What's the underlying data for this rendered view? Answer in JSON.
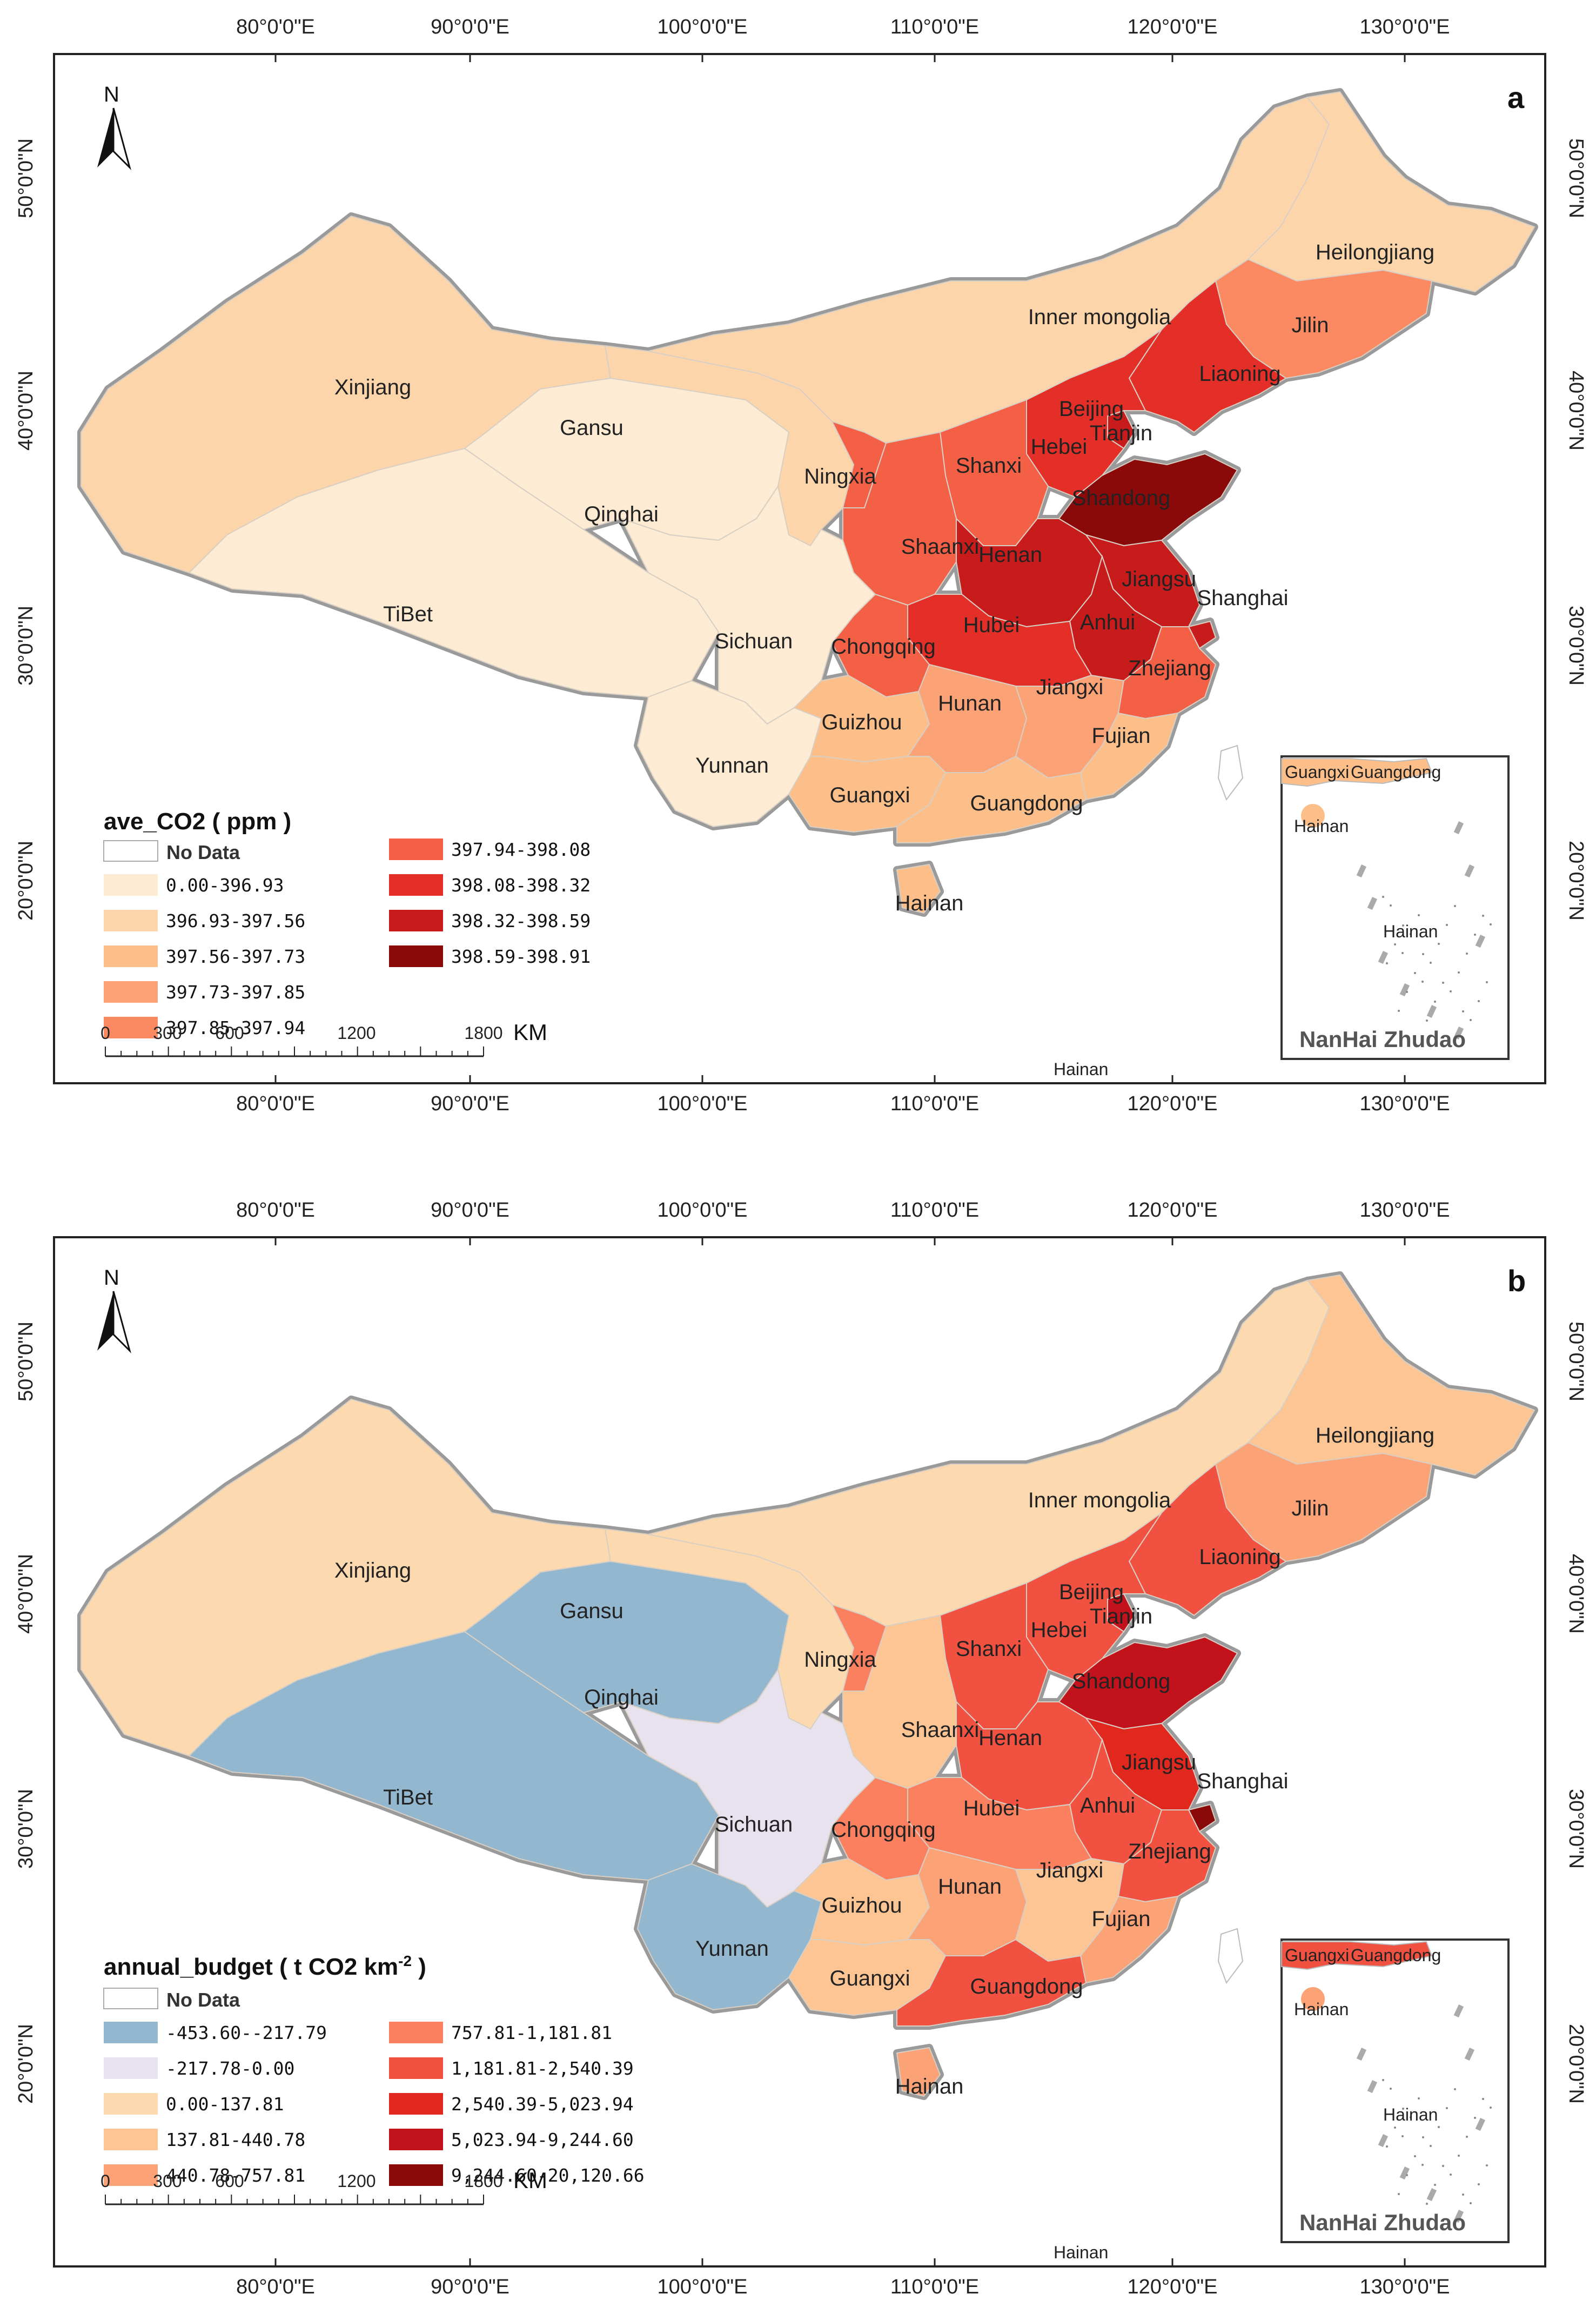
{
  "axes": {
    "lon_labels": [
      "80°0'0\"E",
      "90°0'0\"E",
      "100°0'0\"E",
      "110°0'0\"E",
      "120°0'0\"E",
      "130°0'0\"E"
    ],
    "lat_labels": [
      "50°0'0\"N",
      "40°0'0\"N",
      "30°0'0\"N",
      "20°0'0\"N"
    ]
  },
  "north_label": "N",
  "inset_title": "NanHai Zhudao",
  "scale": {
    "ticks": [
      "0",
      "300",
      "600",
      "1200",
      "1800"
    ],
    "unit": "KM"
  },
  "no_data_label": "No Data",
  "colors": {
    "ocean": "#ffffff",
    "border": "#8a8a8a",
    "a": [
      "#fdebd3",
      "#fdd5ab",
      "#fdbf8a",
      "#fca277",
      "#fb8a62",
      "#f46046",
      "#e32f27",
      "#c81c1c",
      "#8a0a0a"
    ],
    "b": [
      "#93b7cf",
      "#e8e2ef",
      "#fdd9b0",
      "#fdc594",
      "#fca277",
      "#fb8060",
      "#f15140",
      "#e0281f",
      "#c2121b",
      "#8a0a0a"
    ]
  },
  "panel_a": {
    "letter": "a",
    "legend_title": "ave_CO2 ( ppm )",
    "classes": [
      "0.00-396.93",
      "396.93-397.56",
      "397.56-397.73",
      "397.73-397.85",
      "397.85-397.94",
      "397.94-398.08",
      "398.08-398.32",
      "398.32-398.59",
      "398.59-398.91"
    ],
    "provinces": [
      {
        "name": "Xinjiang",
        "cls": 1
      },
      {
        "name": "TiBet",
        "cls": 0
      },
      {
        "name": "Qinghai",
        "cls": 0
      },
      {
        "name": "Gansu",
        "cls": 1
      },
      {
        "name": "Inner mongolia",
        "cls": 1
      },
      {
        "name": "Heilongjiang",
        "cls": 1
      },
      {
        "name": "Jilin",
        "cls": 4
      },
      {
        "name": "Liaoning",
        "cls": 6
      },
      {
        "name": "Beijing",
        "cls": 7
      },
      {
        "name": "Tianjin",
        "cls": 7
      },
      {
        "name": "Hebei",
        "cls": 6
      },
      {
        "name": "Shanxi",
        "cls": 5
      },
      {
        "name": "Ningxia",
        "cls": 5
      },
      {
        "name": "Shaanxi",
        "cls": 5
      },
      {
        "name": "Shandong",
        "cls": 8
      },
      {
        "name": "Henan",
        "cls": 7
      },
      {
        "name": "Jiangsu",
        "cls": 7
      },
      {
        "name": "Shanghai",
        "cls": 7
      },
      {
        "name": "Anhui",
        "cls": 7
      },
      {
        "name": "Hubei",
        "cls": 6
      },
      {
        "name": "Chongqing",
        "cls": 5
      },
      {
        "name": "Sichuan",
        "cls": 0
      },
      {
        "name": "Yunnan",
        "cls": 0
      },
      {
        "name": "Guizhou",
        "cls": 2
      },
      {
        "name": "Hunan",
        "cls": 3
      },
      {
        "name": "Jiangxi",
        "cls": 3
      },
      {
        "name": "Zhejiang",
        "cls": 5
      },
      {
        "name": "Fujian",
        "cls": 2
      },
      {
        "name": "Guangxi",
        "cls": 2
      },
      {
        "name": "Guangdong",
        "cls": 2
      },
      {
        "name": "Hainan",
        "cls": 2
      }
    ],
    "inset_labels": [
      "Guangxi",
      "Guangdong",
      "Hainan",
      "Hainan"
    ],
    "bottom_label": "Hainan"
  },
  "panel_b": {
    "letter": "b",
    "legend_title": "annual_budget ( t CO2 km",
    "legend_title_sup": "-2",
    "legend_title_end": " )",
    "classes": [
      "-453.60--217.79",
      "-217.78-0.00",
      "0.00-137.81",
      "137.81-440.78",
      "440.78-757.81",
      "757.81-1,181.81",
      "1,181.81-2,540.39",
      "2,540.39-5,023.94",
      "5,023.94-9,244.60",
      "9,244.60-20,120.66"
    ],
    "provinces": [
      {
        "name": "Xinjiang",
        "cls": 2
      },
      {
        "name": "TiBet",
        "cls": 0
      },
      {
        "name": "Qinghai",
        "cls": 0
      },
      {
        "name": "Gansu",
        "cls": 2
      },
      {
        "name": "Inner mongolia",
        "cls": 2
      },
      {
        "name": "Heilongjiang",
        "cls": 3
      },
      {
        "name": "Jilin",
        "cls": 4
      },
      {
        "name": "Liaoning",
        "cls": 6
      },
      {
        "name": "Beijing",
        "cls": 7
      },
      {
        "name": "Tianjin",
        "cls": 8
      },
      {
        "name": "Hebei",
        "cls": 6
      },
      {
        "name": "Shanxi",
        "cls": 6
      },
      {
        "name": "Ningxia",
        "cls": 5
      },
      {
        "name": "Shaanxi",
        "cls": 3
      },
      {
        "name": "Shandong",
        "cls": 8
      },
      {
        "name": "Henan",
        "cls": 6
      },
      {
        "name": "Jiangsu",
        "cls": 7
      },
      {
        "name": "Shanghai",
        "cls": 9
      },
      {
        "name": "Anhui",
        "cls": 6
      },
      {
        "name": "Hubei",
        "cls": 5
      },
      {
        "name": "Chongqing",
        "cls": 5
      },
      {
        "name": "Sichuan",
        "cls": 1
      },
      {
        "name": "Yunnan",
        "cls": 0
      },
      {
        "name": "Guizhou",
        "cls": 3
      },
      {
        "name": "Hunan",
        "cls": 4
      },
      {
        "name": "Jiangxi",
        "cls": 3
      },
      {
        "name": "Zhejiang",
        "cls": 6
      },
      {
        "name": "Fujian",
        "cls": 4
      },
      {
        "name": "Guangxi",
        "cls": 3
      },
      {
        "name": "Guangdong",
        "cls": 6
      },
      {
        "name": "Hainan",
        "cls": 4
      }
    ],
    "inset_labels": [
      "Guangxi",
      "Guangdong",
      "Hainan",
      "Hainan"
    ],
    "bottom_label": "Hainan"
  }
}
